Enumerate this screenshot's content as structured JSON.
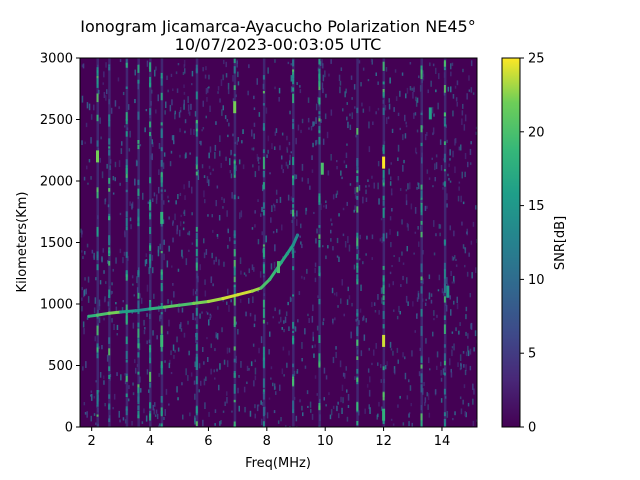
{
  "chart_data": {
    "type": "heatmap",
    "title": "Ionogram Jicamarca-Ayacucho Polarization NE45°",
    "subtitle": "10/07/2023-00:03:05 UTC",
    "xlabel": "Freq(MHz)",
    "ylabel": "Kilometers(Km)",
    "xlim": [
      1.6,
      15.2
    ],
    "ylim": [
      0,
      3000
    ],
    "xticks": [
      2,
      4,
      6,
      8,
      10,
      12,
      14
    ],
    "yticks": [
      0,
      500,
      1000,
      1500,
      2000,
      2500,
      3000
    ],
    "colorbar": {
      "label": "SNR[dB]",
      "range": [
        0,
        25
      ],
      "ticks": [
        0,
        5,
        10,
        15,
        20,
        25
      ],
      "colormap": "viridis"
    },
    "colors": {
      "background": "#440154",
      "low": "#3b528b",
      "mid": "#21918c",
      "high": "#5ec962",
      "max": "#fde725"
    },
    "trace": {
      "freq_mhz": [
        1.9,
        2.2,
        2.6,
        3.0,
        3.5,
        4.0,
        4.5,
        5.0,
        5.5,
        6.0,
        6.5,
        7.0,
        7.5,
        7.8,
        8.1,
        8.3,
        8.5,
        8.7,
        8.9,
        9.05
      ],
      "height_km": [
        900,
        910,
        925,
        935,
        945,
        960,
        975,
        990,
        1005,
        1020,
        1045,
        1075,
        1105,
        1130,
        1200,
        1270,
        1340,
        1410,
        1480,
        1560
      ],
      "snr_db": [
        18,
        20,
        22,
        16,
        14,
        18,
        21,
        20,
        22,
        23,
        24,
        24,
        23,
        20,
        19,
        18,
        17,
        16,
        14,
        12
      ]
    },
    "vertical_interference_mhz": [
      2.2,
      2.6,
      3.2,
      3.6,
      4.0,
      4.4,
      5.6,
      6.9,
      7.9,
      8.9,
      9.8,
      11.1,
      12.0,
      13.3,
      14.1
    ],
    "hotspots": [
      {
        "freq_mhz": 12.0,
        "height_km": 2150,
        "snr_db": 25
      },
      {
        "freq_mhz": 12.0,
        "height_km": 700,
        "snr_db": 24
      },
      {
        "freq_mhz": 12.0,
        "height_km": 100,
        "snr_db": 18
      },
      {
        "freq_mhz": 2.2,
        "height_km": 2200,
        "snr_db": 22
      },
      {
        "freq_mhz": 4.4,
        "height_km": 1700,
        "snr_db": 18
      },
      {
        "freq_mhz": 4.4,
        "height_km": 700,
        "snr_db": 19
      },
      {
        "freq_mhz": 8.4,
        "height_km": 1300,
        "snr_db": 20
      },
      {
        "freq_mhz": 6.9,
        "height_km": 2600,
        "snr_db": 22
      },
      {
        "freq_mhz": 13.6,
        "height_km": 2550,
        "snr_db": 16
      },
      {
        "freq_mhz": 9.9,
        "height_km": 2100,
        "snr_db": 20
      },
      {
        "freq_mhz": 14.2,
        "height_km": 1100,
        "snr_db": 15
      }
    ]
  }
}
